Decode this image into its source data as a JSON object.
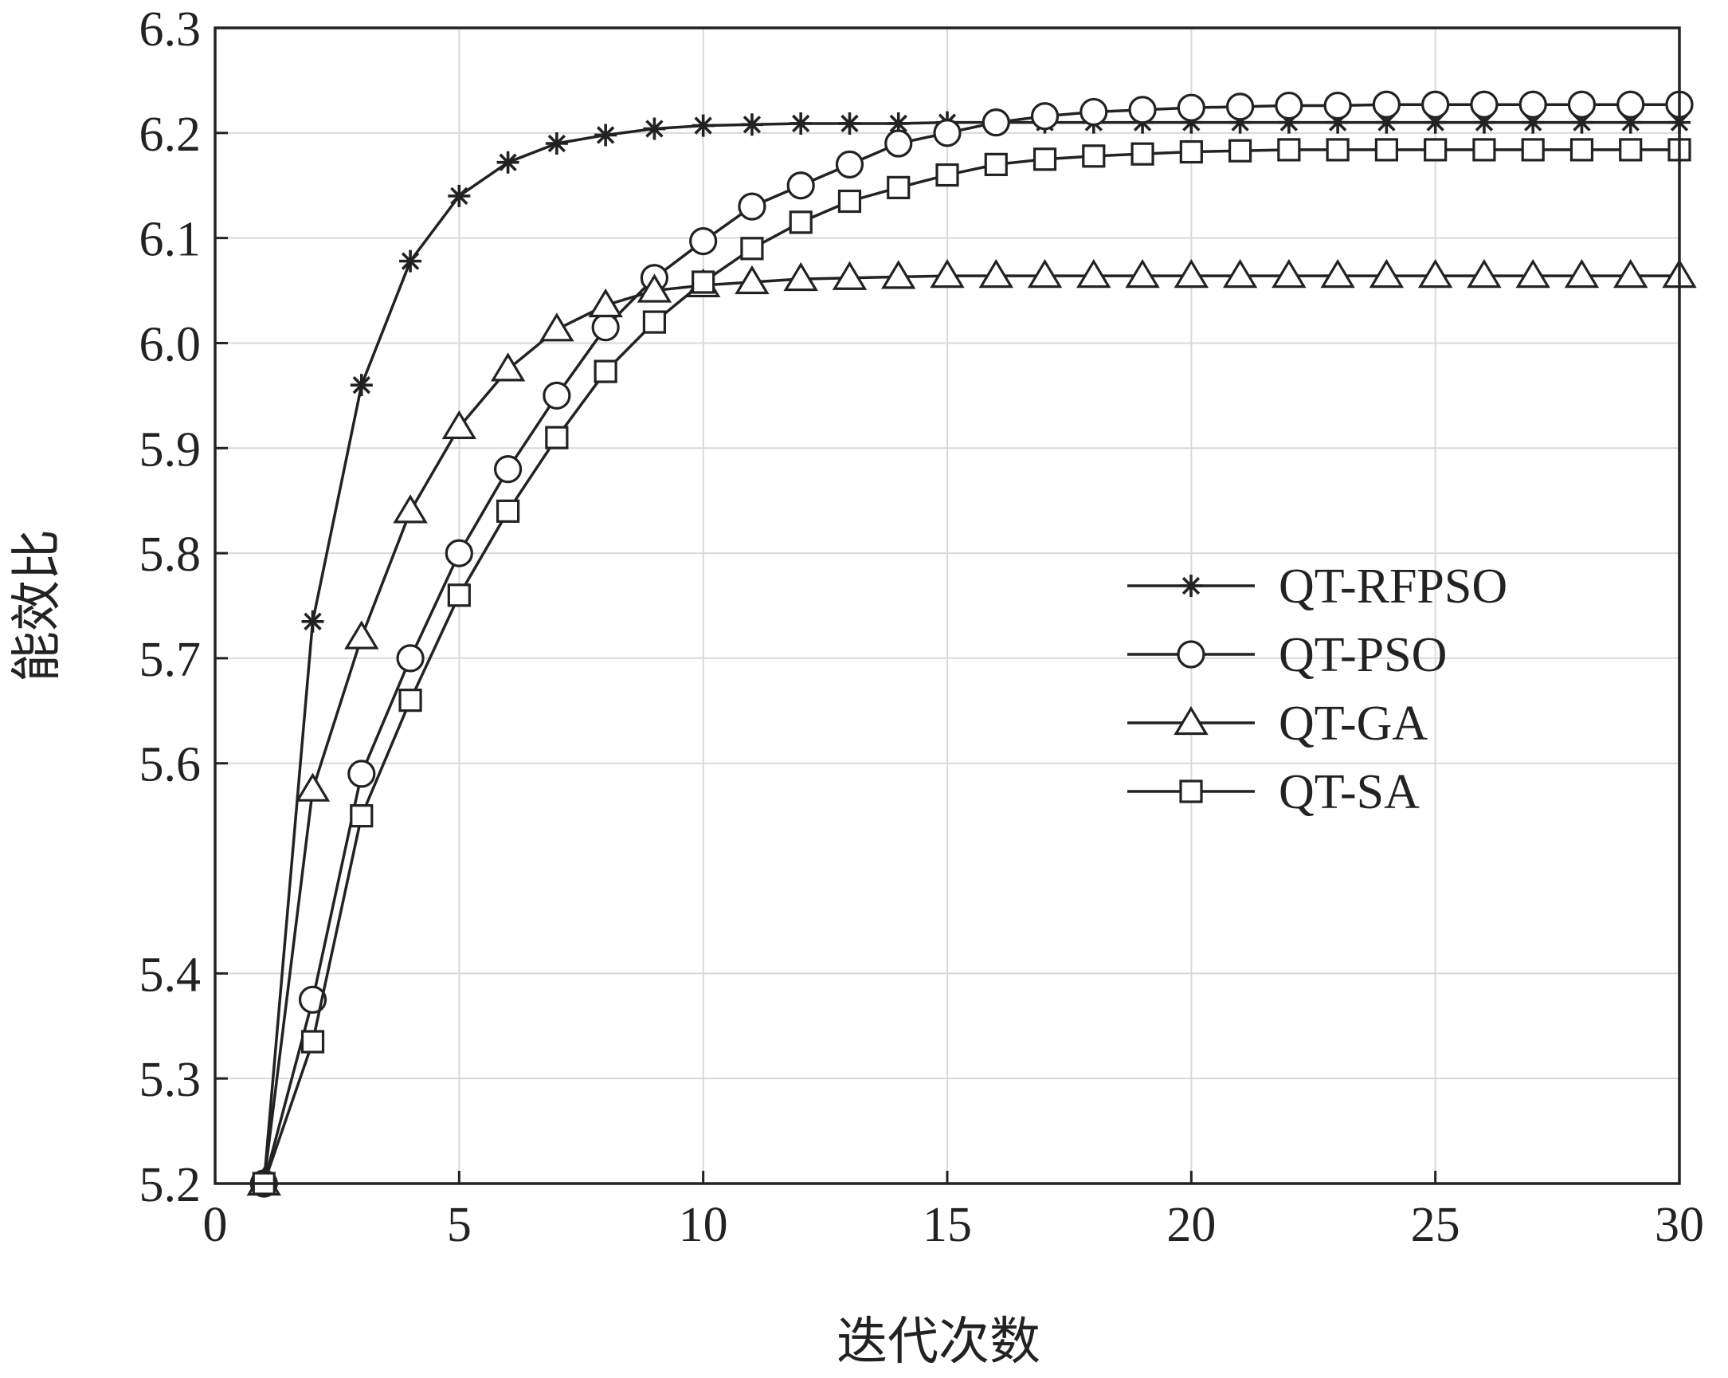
{
  "chart_data": {
    "type": "line",
    "xlabel": "迭代次数",
    "ylabel": "能效比",
    "xlim": [
      0,
      30
    ],
    "ylim": [
      5.2,
      6.3
    ],
    "x_ticks": [
      "0",
      "5",
      "10",
      "15",
      "20",
      "25",
      "30"
    ],
    "x_tick_values": [
      0,
      5,
      10,
      15,
      20,
      25,
      30
    ],
    "y_ticks": [
      "5.2",
      "5.3",
      "5.4",
      "5.6",
      "5.7",
      "5.8",
      "5.9",
      "6.0",
      "6.1",
      "6.2",
      "6.3"
    ],
    "y_tick_values": [
      5.2,
      5.3,
      5.4,
      5.6,
      5.7,
      5.8,
      5.9,
      6.0,
      6.1,
      6.2,
      6.3
    ],
    "grid": true,
    "legend_position": "right",
    "x": [
      1,
      2,
      3,
      4,
      5,
      6,
      7,
      8,
      9,
      10,
      11,
      12,
      13,
      14,
      15,
      16,
      17,
      18,
      19,
      20,
      21,
      22,
      23,
      24,
      25,
      26,
      27,
      28,
      29,
      30
    ],
    "series": [
      {
        "name": "QT-RFPSO",
        "marker": "star",
        "values": [
          5.2,
          5.735,
          5.96,
          6.078,
          6.14,
          6.172,
          6.19,
          6.198,
          6.204,
          6.207,
          6.208,
          6.209,
          6.209,
          6.209,
          6.21,
          6.21,
          6.21,
          6.21,
          6.21,
          6.21,
          6.21,
          6.21,
          6.21,
          6.21,
          6.21,
          6.21,
          6.21,
          6.21,
          6.21,
          6.21
        ]
      },
      {
        "name": "QT-PSO",
        "marker": "circle",
        "values": [
          5.2,
          5.375,
          5.59,
          5.7,
          5.8,
          5.88,
          5.95,
          6.015,
          6.062,
          6.097,
          6.13,
          6.15,
          6.17,
          6.19,
          6.2,
          6.21,
          6.216,
          6.22,
          6.222,
          6.224,
          6.225,
          6.226,
          6.226,
          6.227,
          6.227,
          6.227,
          6.227,
          6.227,
          6.227,
          6.227
        ]
      },
      {
        "name": "QT-GA",
        "marker": "triangle",
        "values": [
          5.2,
          5.575,
          5.72,
          5.84,
          5.92,
          5.975,
          6.013,
          6.036,
          6.05,
          6.055,
          6.058,
          6.061,
          6.062,
          6.063,
          6.064,
          6.064,
          6.064,
          6.064,
          6.064,
          6.064,
          6.064,
          6.064,
          6.064,
          6.064,
          6.064,
          6.064,
          6.064,
          6.064,
          6.064,
          6.064
        ]
      },
      {
        "name": "QT-SA",
        "marker": "square",
        "values": [
          5.2,
          5.335,
          5.55,
          5.66,
          5.76,
          5.84,
          5.91,
          5.973,
          6.02,
          6.058,
          6.09,
          6.115,
          6.135,
          6.148,
          6.16,
          6.17,
          6.175,
          6.178,
          6.18,
          6.182,
          6.183,
          6.184,
          6.184,
          6.184,
          6.184,
          6.184,
          6.184,
          6.184,
          6.184,
          6.184
        ]
      }
    ]
  }
}
